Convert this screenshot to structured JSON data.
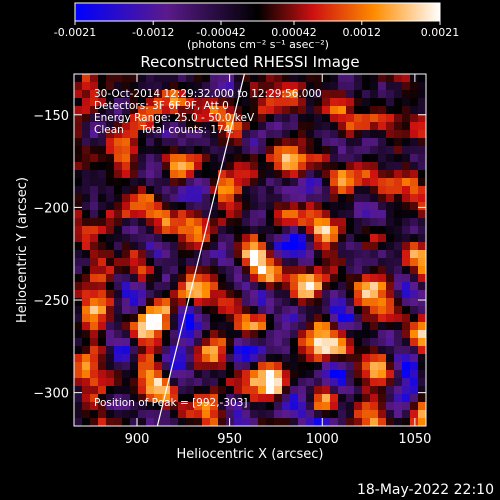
{
  "chart_data": {
    "type": "heatmap",
    "title": "Reconstructed RHESSI Image",
    "xlabel": "Heliocentric X (arcsec)",
    "ylabel": "Heliocentric Y (arcsec)",
    "xlim": [
      866,
      1056
    ],
    "ylim": [
      -318,
      -128
    ],
    "x_ticks": [
      900,
      950,
      1000,
      1050
    ],
    "y_ticks": [
      -150,
      -200,
      -250,
      -300
    ],
    "colorbar": {
      "range": [
        -0.0021,
        0.0021
      ],
      "tick_values": [
        -0.0021,
        -0.0012,
        -0.00042,
        0.00042,
        0.0012,
        0.0021
      ],
      "tick_labels": [
        "-0.0021",
        "-0.0012",
        "-0.00042",
        "0.00042",
        "0.0012",
        "0.0021"
      ],
      "unit_label": "(photons cm⁻² s⁻¹ asec⁻²)",
      "colors": [
        "#0000ff",
        "#5a1a8c",
        "#000000",
        "#cc1010",
        "#ff8c00",
        "#ffffff"
      ]
    },
    "limb_line": [
      [
        911,
        -318
      ],
      [
        958,
        -128
      ]
    ],
    "annotations": {
      "time_range": "30-Oct-2014 12:29:32.000 to 12:29:56.000",
      "detectors": "Detectors: 3F 6F 9F, Att 0",
      "energy_range": "Energy Range: 25.0 - 50.0 keV",
      "method_counts": "Clean     Total counts: 174.",
      "peak": "Position of Peak = [992,-303]"
    }
  },
  "footer_timestamp": "18-May-2022 22:10"
}
